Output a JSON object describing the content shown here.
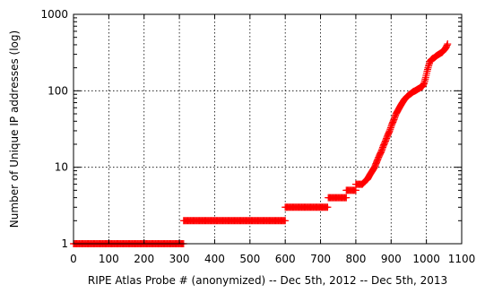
{
  "chart_data": {
    "type": "scatter",
    "xlabel": "RIPE Atlas Probe # (anonymized) -- Dec 5th, 2012 -- Dec 5th, 2013",
    "ylabel": "Number of Unique IP addresses (log)",
    "xlim": [
      0,
      1100
    ],
    "ylim": [
      1,
      1000
    ],
    "yscale": "log",
    "grid": true,
    "marker": "plus",
    "color": "#ff0000",
    "xticks": [
      0,
      100,
      200,
      300,
      400,
      500,
      600,
      700,
      800,
      900,
      1000,
      1100
    ],
    "xtick_labels": [
      "0",
      "100",
      "200",
      "300",
      "400",
      "500",
      "600",
      "700",
      "800",
      "900",
      "1000",
      "1100"
    ],
    "yticks": [
      1,
      10,
      100,
      1000
    ],
    "ytick_labels": [
      "1",
      "10",
      "100",
      "1000"
    ],
    "series": [
      {
        "steps": [
          {
            "x_start": 0,
            "x_end": 312,
            "y": 1
          },
          {
            "x_start": 312,
            "x_end": 600,
            "y": 2
          },
          {
            "x_start": 600,
            "x_end": 722,
            "y": 3
          },
          {
            "x_start": 722,
            "x_end": 773,
            "y": 4
          },
          {
            "x_start": 773,
            "x_end": 800,
            "y": 5
          },
          {
            "x_start": 800,
            "x_end": 818,
            "y": 6
          }
        ],
        "curve": [
          [
            818,
            6
          ],
          [
            825,
            6.5
          ],
          [
            833,
            7
          ],
          [
            840,
            8
          ],
          [
            847,
            9
          ],
          [
            853,
            10
          ],
          [
            860,
            12
          ],
          [
            866,
            14
          ],
          [
            872,
            16
          ],
          [
            878,
            19
          ],
          [
            884,
            22
          ],
          [
            890,
            26
          ],
          [
            896,
            30
          ],
          [
            902,
            36
          ],
          [
            908,
            42
          ],
          [
            914,
            50
          ],
          [
            920,
            56
          ],
          [
            926,
            63
          ],
          [
            932,
            70
          ],
          [
            938,
            77
          ],
          [
            944,
            83
          ],
          [
            950,
            88
          ],
          [
            956,
            92
          ],
          [
            962,
            97
          ],
          [
            968,
            100
          ],
          [
            974,
            104
          ],
          [
            980,
            108
          ],
          [
            986,
            112
          ],
          [
            990,
            115
          ],
          [
            994,
            128
          ],
          [
            998,
            150
          ],
          [
            1002,
            180
          ],
          [
            1006,
            210
          ],
          [
            1010,
            240
          ],
          [
            1014,
            255
          ],
          [
            1018,
            265
          ],
          [
            1022,
            270
          ],
          [
            1026,
            280
          ],
          [
            1030,
            290
          ],
          [
            1035,
            300
          ],
          [
            1040,
            310
          ],
          [
            1045,
            320
          ],
          [
            1050,
            340
          ],
          [
            1054,
            360
          ],
          [
            1057,
            380
          ],
          [
            1060,
            410
          ]
        ]
      }
    ]
  }
}
